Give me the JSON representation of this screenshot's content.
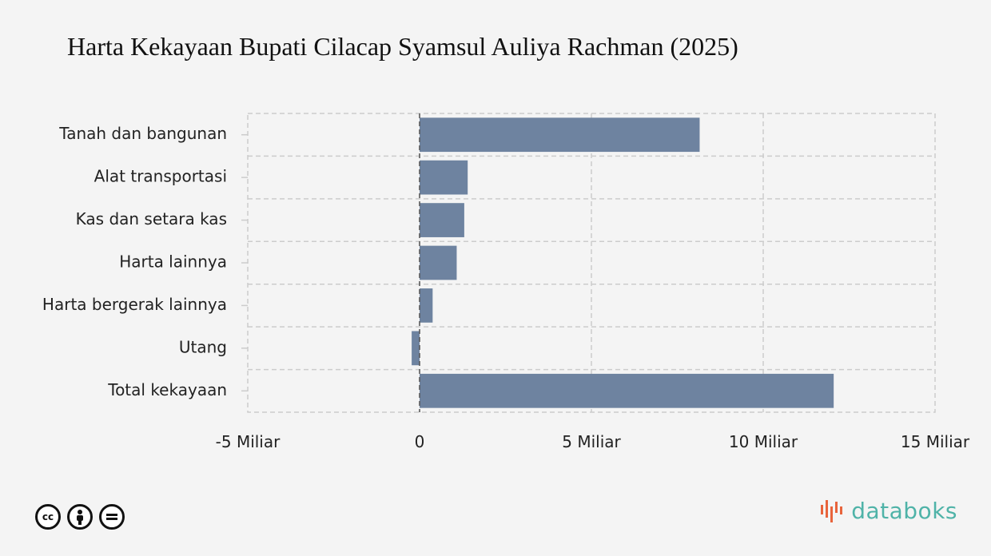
{
  "title": "Harta Kekayaan Bupati Cilacap Syamsul Auliya Rachman (2025)",
  "colors": {
    "bar": "#6e83a0",
    "grid": "#cccccc",
    "zero_line": "#555555",
    "brand": "#4fb3a8",
    "brand_accent": "#e8643c"
  },
  "chart_data": {
    "type": "bar",
    "orientation": "horizontal",
    "categories": [
      "Tanah dan bangunan",
      "Alat transportasi",
      "Kas dan setara kas",
      "Harta lainnya",
      "Harta bergerak lainnya",
      "Utang",
      "Total kekayaan"
    ],
    "values": [
      8150000000,
      1400000000,
      1300000000,
      1080000000,
      380000000,
      -230000000,
      12050000000
    ],
    "xlim": [
      -5000000000,
      15000000000
    ],
    "x_ticks": [
      -5000000000,
      0,
      5000000000,
      10000000000,
      15000000000
    ],
    "x_tick_labels": [
      "-5 Miliar",
      "0",
      "5 Miliar",
      "10 Miliar",
      "15 Miliar"
    ],
    "grid": true,
    "xlabel": "",
    "ylabel": ""
  },
  "license": {
    "icons": [
      "cc-icon",
      "by-icon",
      "nd-icon"
    ]
  },
  "brand": {
    "name": "databoks"
  }
}
